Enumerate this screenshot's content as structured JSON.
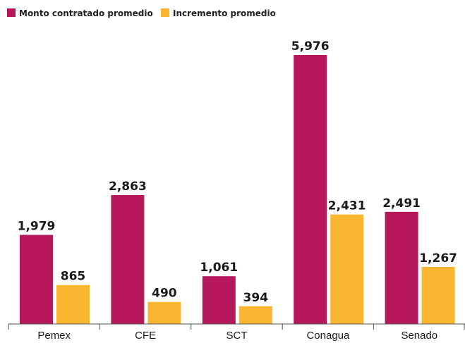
{
  "colors": {
    "series1": "#B5175A",
    "series2": "#FBB631",
    "axis": "#555555"
  },
  "chart_data": {
    "type": "bar",
    "categories": [
      "Pemex",
      "CFE",
      "SCT",
      "Conagua",
      "Senado"
    ],
    "series": [
      {
        "name": "Monto contratado promedio",
        "values": [
          1979,
          2863,
          1061,
          5976,
          2491
        ],
        "labels": [
          "1,979",
          "2,863",
          "1,061",
          "5,976",
          "2,491"
        ]
      },
      {
        "name": "Incremento promedio",
        "values": [
          865,
          490,
          394,
          2431,
          1267
        ],
        "labels": [
          "865",
          "490",
          "394",
          "2,431",
          "1,267"
        ]
      }
    ],
    "ylim": [
      0,
      6500
    ],
    "grid": false,
    "legend_position": "top-left"
  }
}
